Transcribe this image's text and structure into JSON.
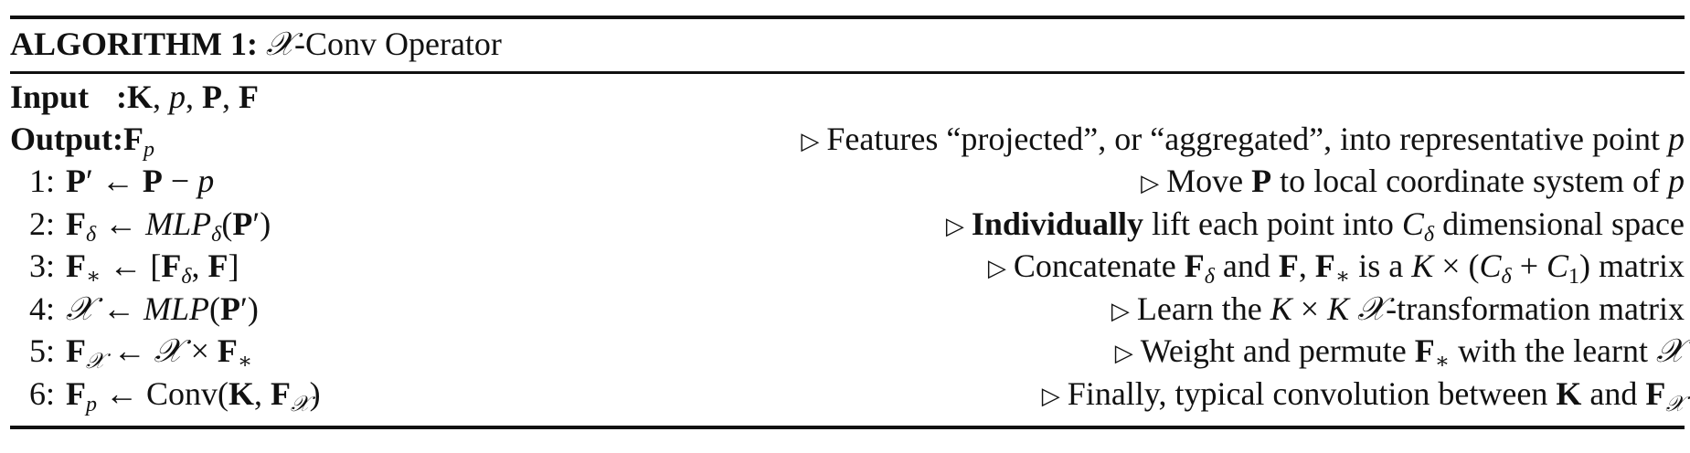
{
  "algorithm": {
    "heading": "ALGORITHM 1:",
    "operator": "𝒳",
    "title_rest": "-Conv Operator"
  },
  "io": {
    "input_label": "Input",
    "input_colon": ":",
    "input_value": "K, p, P, F",
    "output_label": "Output",
    "output_colon": ":",
    "output_value": "F",
    "output_sub": "p",
    "output_comment": "Features “projected”, or “aggregated”, into representative point p"
  },
  "comment_marker": "▷",
  "steps": [
    {
      "num": "1:",
      "lhs": "P′ ← P − p",
      "comment": "Move P to local coordinate system of p"
    },
    {
      "num": "2:",
      "lhs": "Fδ ← MLPδ(P′)",
      "comment_bold": "Individually",
      "comment": "lift each point into Cδ dimensional space"
    },
    {
      "num": "3:",
      "lhs": "F∗ ← [Fδ, F]",
      "comment": "Concatenate Fδ and F, F∗ is a K × (Cδ + C1) matrix"
    },
    {
      "num": "4:",
      "lhs": "𝒳 ← MLP(P′)",
      "comment": "Learn the K × K 𝒳-transformation matrix"
    },
    {
      "num": "5:",
      "lhs": "F𝒳 ← 𝒳 × F∗",
      "comment": "Weight and permute F∗ with the learnt 𝒳"
    },
    {
      "num": "6:",
      "lhs": "Fp ← Conv(K, F𝒳)",
      "comment": "Finally, typical convolution between K and F𝒳"
    }
  ]
}
